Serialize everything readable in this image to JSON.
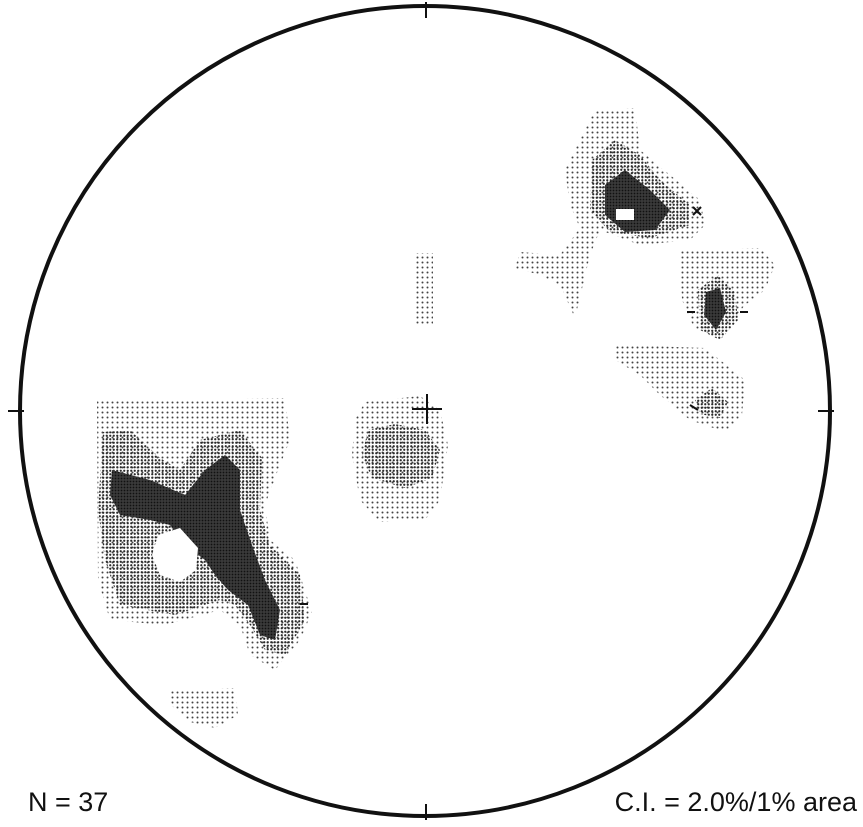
{
  "labels": {
    "n_count": "N =  37",
    "contour_interval": "C.I. = 2.0%/1% area"
  },
  "colors": {
    "outline": "#111111",
    "dark": "#1a1a1a",
    "mid": "#5a5a5a",
    "light": "#9a9a9a"
  }
}
